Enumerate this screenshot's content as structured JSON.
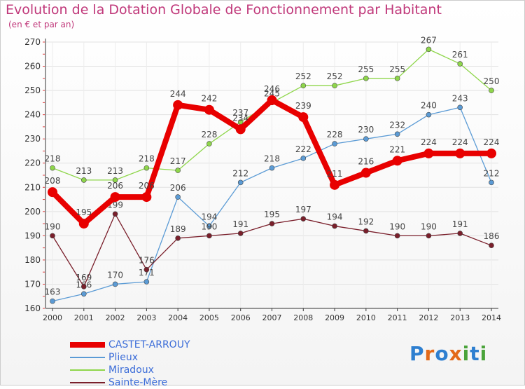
{
  "header": {
    "title": "Evolution de la Dotation Globale de Fonctionnement par Habitant",
    "subtitle": "(en € et par an)"
  },
  "logo": {
    "text": "Proxiti"
  },
  "colors": {
    "title": "#c0387a",
    "axis": "#333333",
    "legend_text": "#3b6cd8"
  },
  "chart_data": {
    "type": "line",
    "title": "Evolution de la Dotation Globale de Fonctionnement par Habitant",
    "subtitle": "(en € et par an)",
    "xlabel": "",
    "ylabel": "",
    "x": [
      "2000",
      "2001",
      "2002",
      "2003",
      "2004",
      "2005",
      "2006",
      "2007",
      "2008",
      "2009",
      "2010",
      "2011",
      "2012",
      "2013",
      "2014"
    ],
    "ylim": [
      160,
      270
    ],
    "yticks": [
      160,
      170,
      180,
      190,
      200,
      210,
      220,
      230,
      240,
      250,
      260,
      270
    ],
    "grid": true,
    "legend_position": "bottom-left",
    "series": [
      {
        "name": "CASTET-ARROUY",
        "color": "#e80000",
        "emphasis": true,
        "values": [
          208,
          195,
          206,
          206,
          244,
          242,
          234,
          246,
          239,
          211,
          216,
          221,
          224,
          224,
          224
        ]
      },
      {
        "name": "Plieux",
        "color": "#5b9bd5",
        "emphasis": false,
        "values": [
          163,
          166,
          170,
          171,
          206,
          194,
          212,
          218,
          222,
          228,
          230,
          232,
          240,
          243,
          212
        ]
      },
      {
        "name": "Miradoux",
        "color": "#8ed64a",
        "emphasis": false,
        "values": [
          218,
          213,
          213,
          218,
          217,
          228,
          237,
          245,
          252,
          252,
          255,
          255,
          267,
          261,
          250
        ]
      },
      {
        "name": "Sainte-Mère",
        "color": "#7a1f2b",
        "emphasis": false,
        "values": [
          190,
          169,
          199,
          176,
          189,
          190,
          191,
          195,
          197,
          194,
          192,
          190,
          190,
          191,
          186
        ]
      }
    ]
  }
}
